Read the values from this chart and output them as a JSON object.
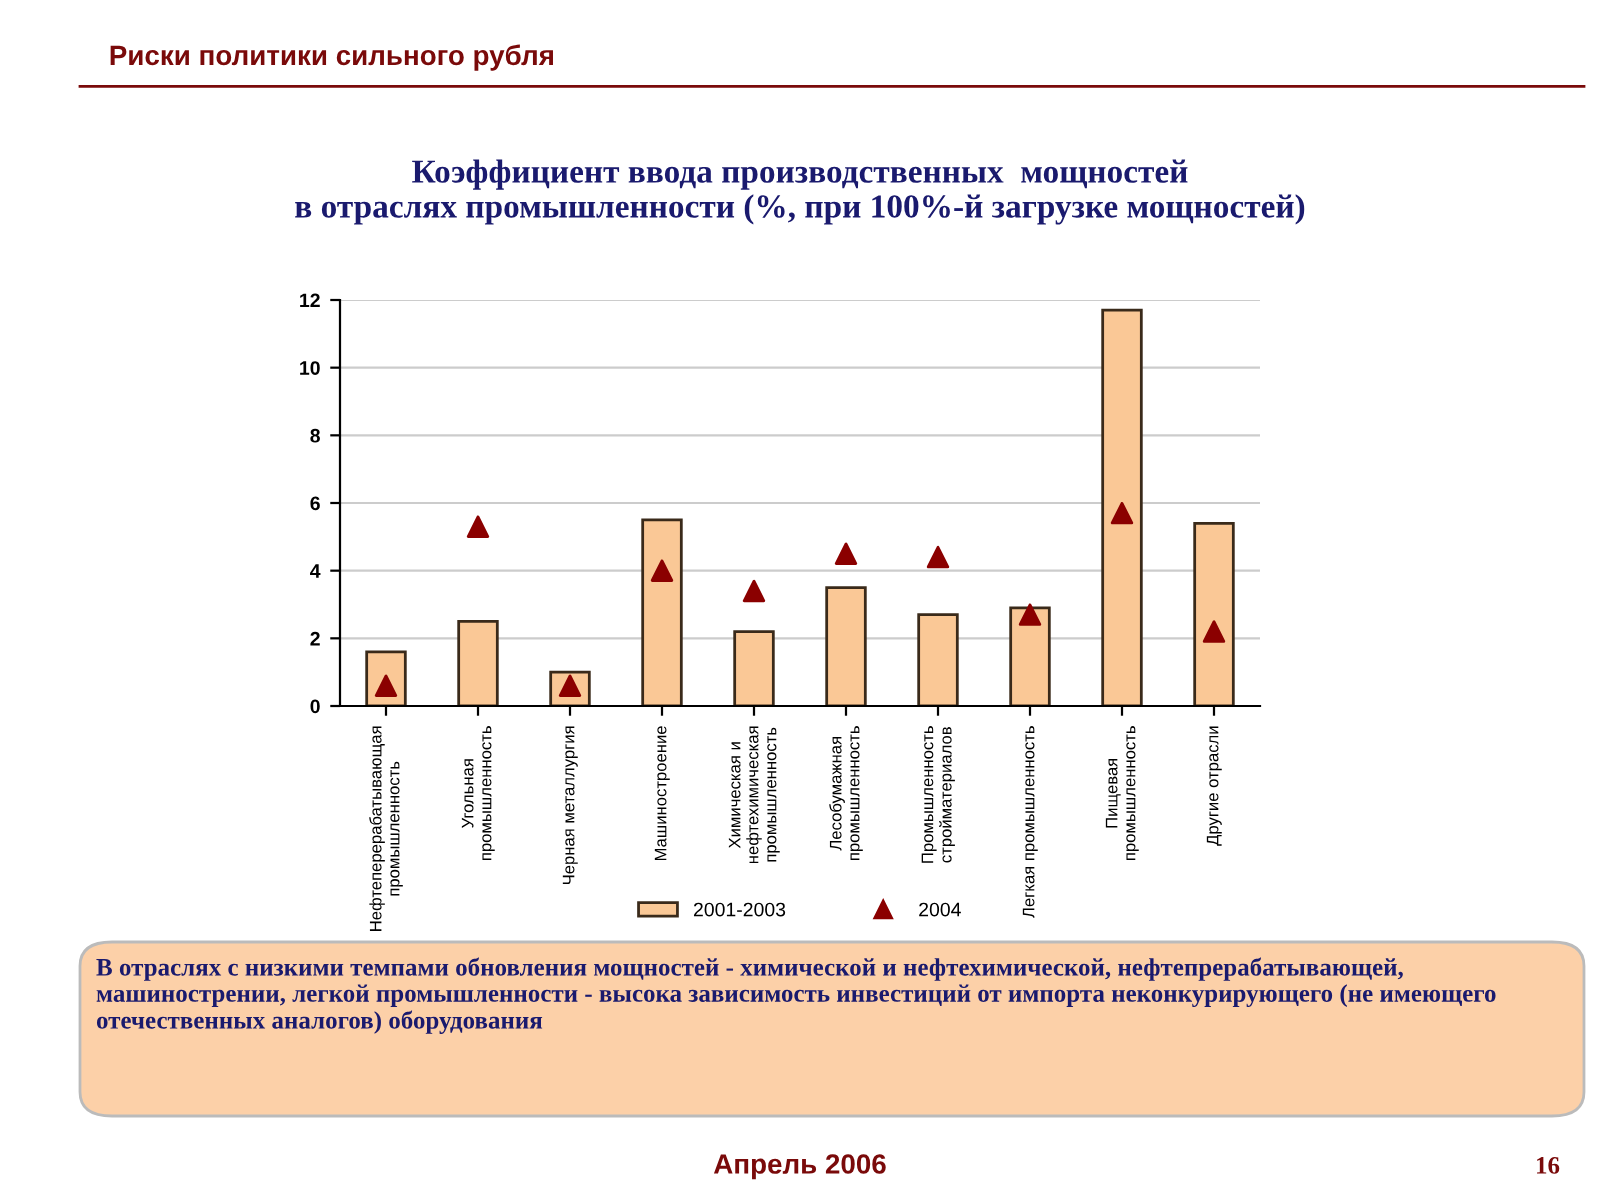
{
  "chart_data": {
    "type": "bar",
    "title": "Коэффициент ввода производственных  мощностей\nв отраслях промышленности (%, при 100%-й загрузке мощностей)",
    "categories": [
      "Нефтеперерабатывающая\nпромышленность",
      "Угольная\nпромышленность",
      "Черная металлургия",
      "Машиностроение",
      "Химическая и\nнефтехимическая\nпромышленность",
      "Лесобумажная\nпромышленность",
      "Промышленность\nстройматериалов",
      "Легкая промышленность",
      "Пищевая\nпромышленность",
      "Другие отрасли"
    ],
    "series": [
      {
        "name": "2001-2003",
        "color": "#fac896",
        "values": [
          1.6,
          2.5,
          1.0,
          5.5,
          2.2,
          3.5,
          2.7,
          2.9,
          11.7,
          5.4
        ]
      },
      {
        "name": "2004",
        "type": "scatter",
        "color": "#8b0000",
        "marker": "triangle",
        "values": [
          0.6,
          5.3,
          0.6,
          4.0,
          3.4,
          4.5,
          4.4,
          2.7,
          5.7,
          2.2
        ]
      }
    ],
    "ylim": [
      0,
      12
    ],
    "yticks": [
      0,
      2,
      4,
      6,
      8,
      10,
      12
    ],
    "grid": "y",
    "legend": "bottom",
    "annotations": [
      "Риски политики сильного рубля",
      "В отраслях с низкими темпами обновления мощностей - химической и нефтехимической, нефтепрерабатывающей, машинострении, легкой промышленности - высока зависимость инвестиций от импорта неконкурирующего (не имеющего отечественных аналогов) оборудования",
      "Апрель 2006",
      "16"
    ]
  }
}
